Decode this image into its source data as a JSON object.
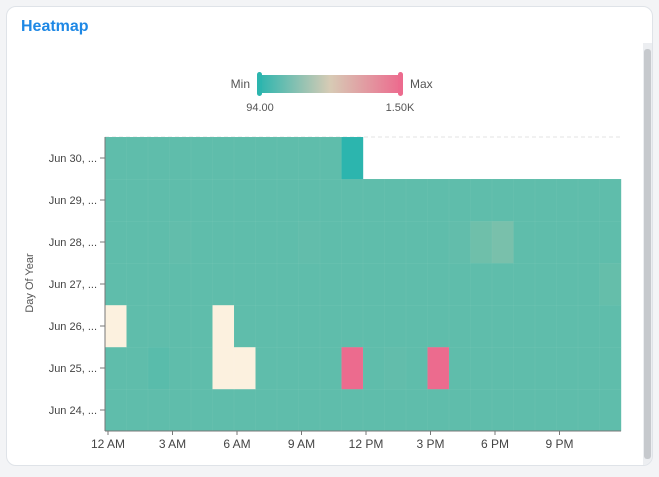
{
  "card": {
    "title": "Heatmap"
  },
  "legend": {
    "min_label": "Min",
    "max_label": "Max",
    "min_value": "94.00",
    "max_value": "1.50K"
  },
  "colors": {
    "low": "#2cb5ae",
    "base": "#6dbfaa",
    "mid": "#d7cbb5",
    "high": "#ec6b8e",
    "pale": "#fcf1df"
  },
  "chart_data": {
    "type": "heatmap",
    "title": "Heatmap",
    "ylabel": "Day Of Year",
    "xlabel": "",
    "x_ticks": [
      "12 AM",
      "3 AM",
      "6 AM",
      "9 AM",
      "12 PM",
      "3 PM",
      "6 PM",
      "9 PM"
    ],
    "hours": [
      0,
      1,
      2,
      3,
      4,
      5,
      6,
      7,
      8,
      9,
      10,
      11,
      12,
      13,
      14,
      15,
      16,
      17,
      18,
      19,
      20,
      21,
      22,
      23
    ],
    "days": [
      "Jun 24, ...",
      "Jun 25, ...",
      "Jun 26, ...",
      "Jun 27, ...",
      "Jun 28, ...",
      "Jun 29, ...",
      "Jun 30, ..."
    ],
    "color_range": [
      94,
      1500
    ],
    "values": [
      [
        330,
        330,
        330,
        330,
        330,
        330,
        330,
        330,
        330,
        330,
        330,
        330,
        330,
        330,
        330,
        330,
        330,
        330,
        330,
        330,
        330,
        330,
        330,
        330
      ],
      [
        330,
        330,
        310,
        330,
        330,
        1020,
        1030,
        330,
        330,
        330,
        330,
        1500,
        330,
        340,
        330,
        1500,
        330,
        330,
        330,
        330,
        330,
        330,
        330,
        330
      ],
      [
        1020,
        330,
        330,
        330,
        330,
        1020,
        330,
        330,
        330,
        330,
        330,
        330,
        330,
        330,
        330,
        330,
        330,
        330,
        330,
        330,
        330,
        330,
        330,
        330
      ],
      [
        330,
        330,
        330,
        330,
        330,
        330,
        330,
        330,
        330,
        330,
        330,
        330,
        330,
        330,
        330,
        330,
        330,
        330,
        330,
        330,
        330,
        330,
        330,
        350
      ],
      [
        330,
        330,
        330,
        340,
        330,
        330,
        330,
        330,
        330,
        340,
        330,
        330,
        330,
        330,
        330,
        330,
        340,
        380,
        400,
        330,
        330,
        330,
        330,
        330
      ],
      [
        330,
        330,
        330,
        330,
        330,
        330,
        330,
        330,
        330,
        330,
        330,
        330,
        330,
        330,
        330,
        330,
        330,
        330,
        330,
        330,
        330,
        330,
        330,
        330
      ],
      [
        330,
        330,
        330,
        330,
        330,
        330,
        330,
        330,
        330,
        330,
        330,
        94,
        null,
        null,
        null,
        null,
        null,
        null,
        null,
        null,
        null,
        null,
        null,
        null
      ]
    ]
  }
}
